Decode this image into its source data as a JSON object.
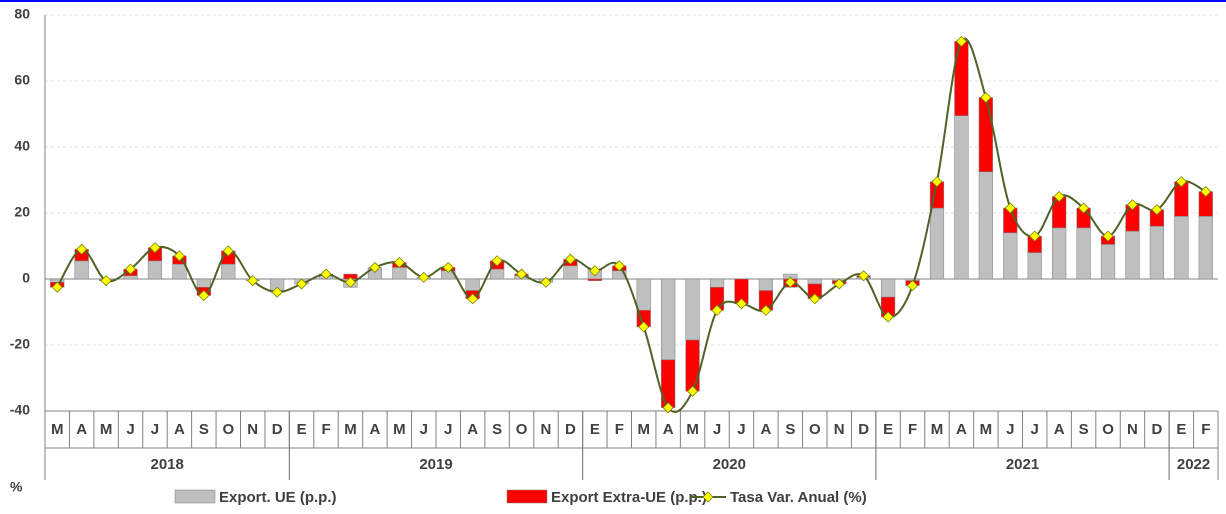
{
  "chart_data": {
    "type": "bar-line",
    "y_unit_label": "%",
    "groups": [
      {
        "label": "2018",
        "categories": [
          "M",
          "A",
          "M",
          "J",
          "J",
          "A",
          "S",
          "O",
          "N",
          "D"
        ]
      },
      {
        "label": "2019",
        "categories": [
          "E",
          "F",
          "M",
          "A",
          "M",
          "J",
          "J",
          "A",
          "S",
          "O",
          "N",
          "D"
        ]
      },
      {
        "label": "2020",
        "categories": [
          "E",
          "F",
          "M",
          "A",
          "M",
          "J",
          "J",
          "A",
          "S",
          "O",
          "N",
          "D"
        ]
      },
      {
        "label": "2021",
        "categories": [
          "E",
          "F",
          "M",
          "A",
          "M",
          "J",
          "J",
          "A",
          "S",
          "O",
          "N",
          "D"
        ]
      },
      {
        "label": "2022",
        "categories": [
          "E",
          "F"
        ]
      }
    ],
    "series": [
      {
        "name": "Export. UE (p.p.)",
        "kind": "bar",
        "color": "#bfbfbf",
        "values": [
          -1,
          5.5,
          -0.3,
          1,
          5.5,
          4.5,
          -2.5,
          4.5,
          -0.5,
          -3.5,
          -1.5,
          1,
          -2.5,
          3.5,
          3.5,
          0.5,
          2.5,
          -3.5,
          3,
          1,
          -1,
          4,
          3,
          2.5,
          -9.5,
          -24.5,
          -18.5,
          -2.5,
          0,
          -3.5,
          1.5,
          -1.5,
          -0.5,
          0.5,
          -5.5,
          -0.5,
          21.5,
          49.5,
          32.5,
          14,
          8,
          15.5,
          15.5,
          10.5,
          14.5,
          16,
          19,
          19
        ]
      },
      {
        "name": "Export Extra-UE (p.p.)",
        "kind": "bar",
        "color": "#ff0000",
        "values": [
          -1.5,
          3.5,
          -0.2,
          2,
          4,
          2.5,
          -2.5,
          4,
          0,
          -0.5,
          0,
          0.5,
          1.5,
          0,
          1.5,
          0,
          1,
          -2.5,
          2.5,
          0.5,
          0,
          2,
          -0.5,
          1.5,
          -5,
          -14.5,
          -15.5,
          -7,
          -7.5,
          -6,
          -2.5,
          -4.5,
          -1,
          0.5,
          -6,
          -1.5,
          8,
          22.5,
          22.5,
          7.5,
          5,
          9.5,
          6,
          2.5,
          8,
          5,
          10.5,
          7.5
        ]
      },
      {
        "name": "Tasa Var. Anual (%)",
        "kind": "line",
        "color": "#4f6228",
        "marker_color": "#ffff00",
        "values": [
          -2.5,
          9,
          -0.5,
          3,
          9.5,
          7,
          -5,
          8.5,
          -0.5,
          -4,
          -1.5,
          1.5,
          -1,
          3.5,
          5,
          0.5,
          3.5,
          -6,
          5.5,
          1.5,
          -1,
          6,
          2.5,
          4,
          -14.5,
          -39,
          -34,
          -9.5,
          -7.5,
          -9.5,
          -1,
          -6,
          -1.5,
          1,
          -11.5,
          -2,
          29.5,
          72,
          55,
          21.5,
          13,
          25,
          21.5,
          13,
          22.5,
          21,
          29.5,
          26.5
        ]
      }
    ],
    "ylim": [
      -40,
      80
    ],
    "yticks": [
      -40,
      -20,
      0,
      20,
      40,
      60,
      80
    ],
    "grid": true
  }
}
